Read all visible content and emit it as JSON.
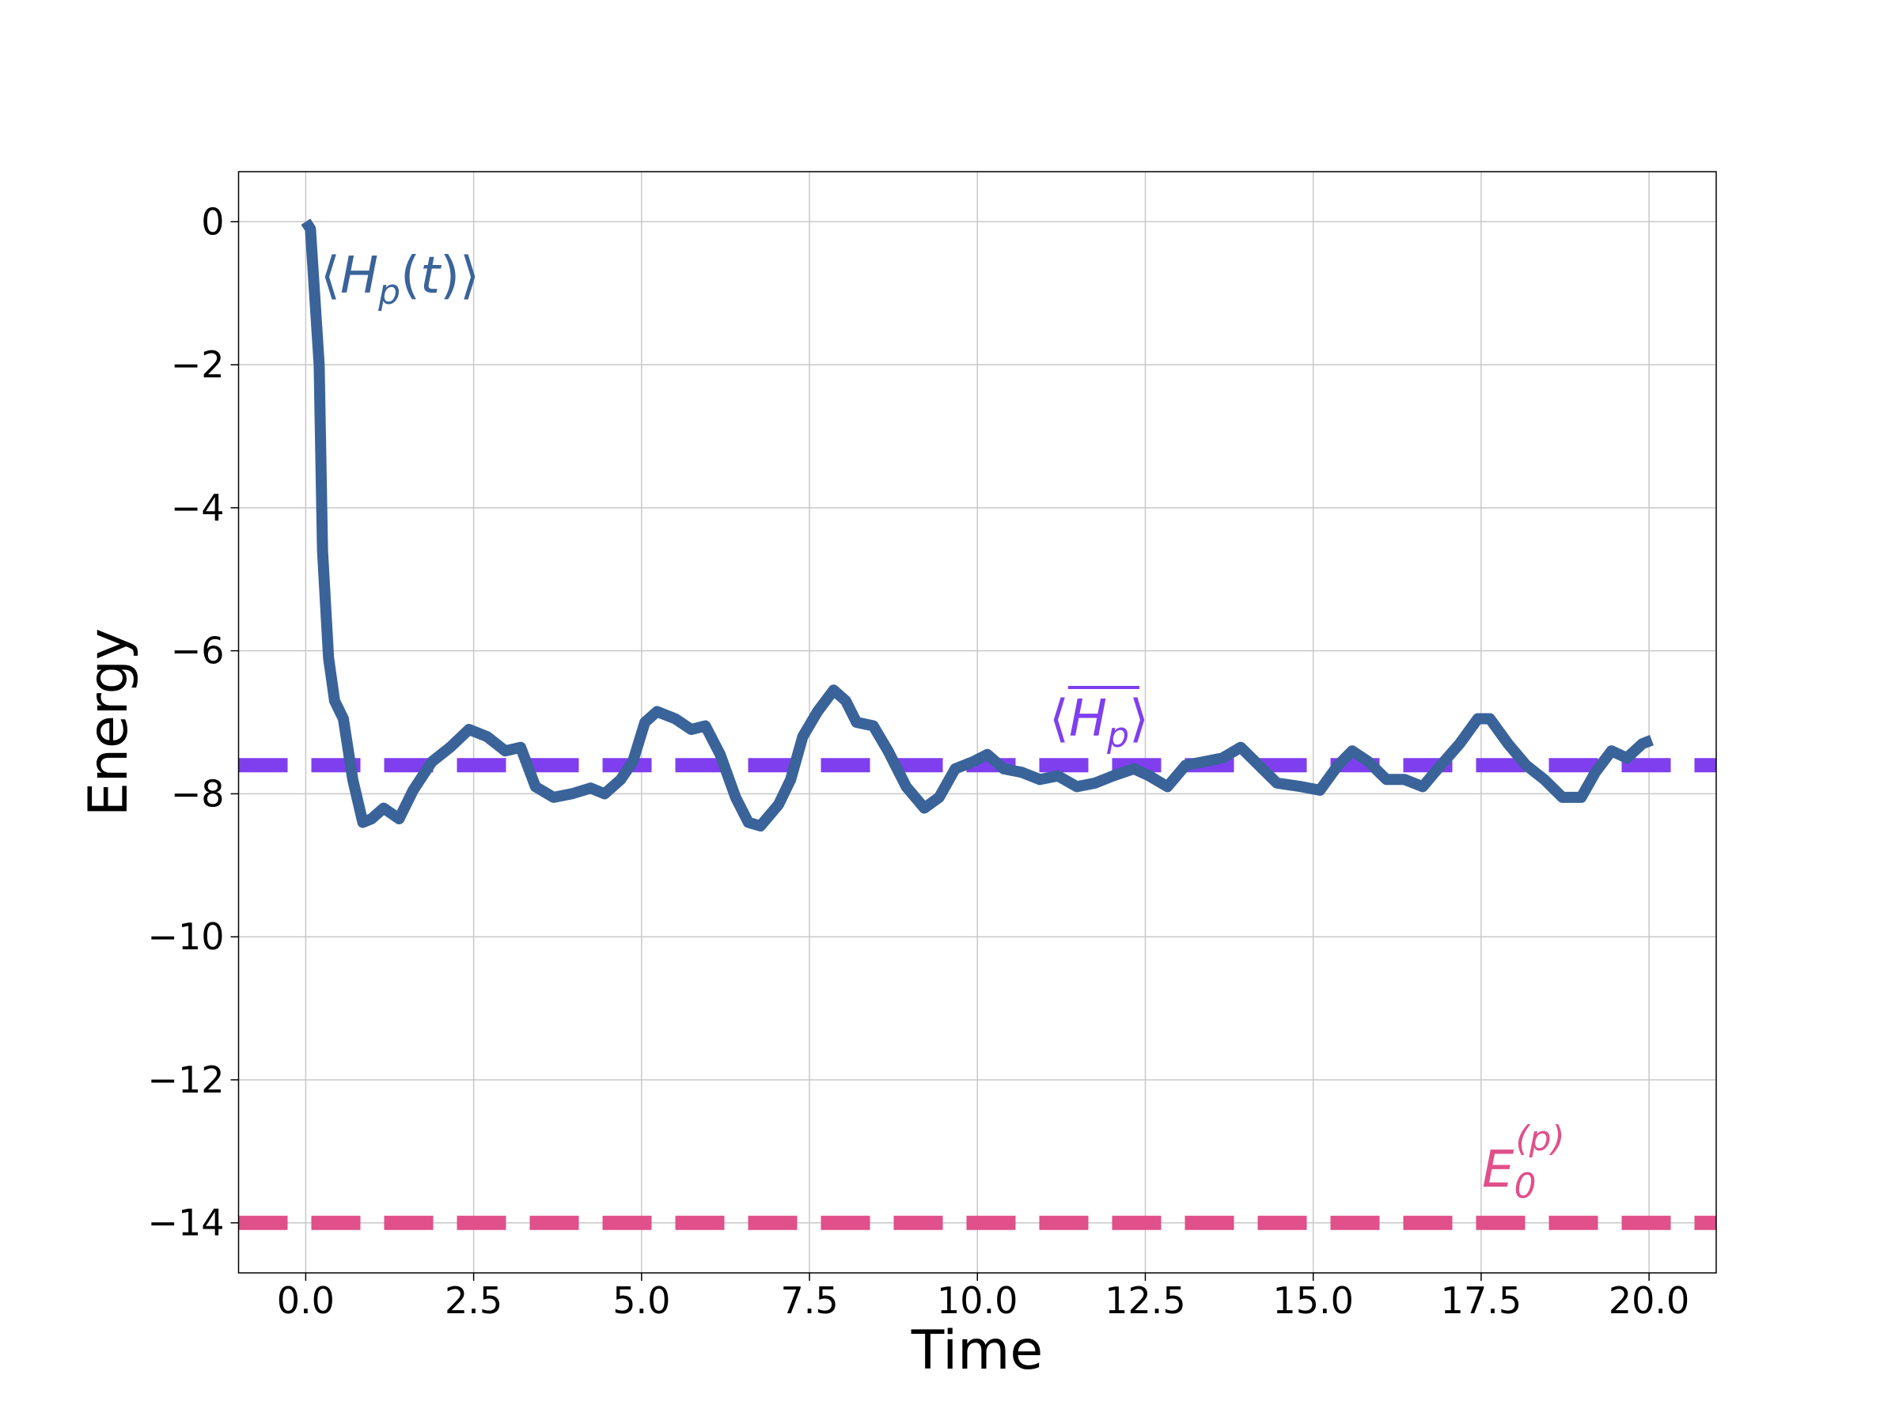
{
  "chart_data": {
    "type": "line",
    "x_label": "Time",
    "y_label": "Energy",
    "xlim": [
      -1.0,
      21.0
    ],
    "ylim": [
      -14.7,
      0.7
    ],
    "xticks": [
      {
        "value": 0,
        "label": "0.0"
      },
      2.5,
      {
        "value": 5,
        "label": "5.0"
      },
      7.5,
      {
        "value": 10,
        "label": "10.0"
      },
      12.5,
      {
        "value": 15,
        "label": "15.0"
      },
      17.5,
      {
        "value": 20,
        "label": "20.0"
      }
    ],
    "yticks": [
      {
        "value": 0,
        "label": "0"
      },
      {
        "value": -2,
        "label": "−2"
      },
      {
        "value": -4,
        "label": "−4"
      },
      {
        "value": -6,
        "label": "−6"
      },
      {
        "value": -8,
        "label": "−8"
      },
      {
        "value": -10,
        "label": "−10"
      },
      {
        "value": -12,
        "label": "−12"
      },
      {
        "value": -14,
        "label": "−14"
      }
    ],
    "grid": true,
    "x": [
      0,
      0.07,
      0.2,
      0.25,
      0.34,
      0.43,
      0.56,
      0.7,
      0.85,
      0.98,
      1.16,
      1.39,
      1.6,
      1.88,
      2.15,
      2.43,
      2.7,
      2.97,
      3.2,
      3.42,
      3.69,
      3.96,
      4.24,
      4.45,
      4.69,
      4.87,
      5.05,
      5.23,
      5.5,
      5.74,
      5.95,
      6.17,
      6.4,
      6.59,
      6.77,
      7.04,
      7.22,
      7.4,
      7.62,
      7.86,
      8.04,
      8.2,
      8.45,
      8.67,
      8.94,
      9.21,
      9.43,
      9.67,
      9.94,
      10.15,
      10.39,
      10.66,
      10.93,
      11.2,
      11.48,
      11.75,
      12.02,
      12.33,
      12.56,
      12.83,
      13.1,
      13.38,
      13.65,
      13.92,
      14.19,
      14.46,
      14.82,
      15.1,
      15.37,
      15.58,
      15.82,
      16.09,
      16.36,
      16.63,
      16.9,
      17.18,
      17.45,
      17.63,
      17.9,
      18.17,
      18.44,
      18.71,
      18.99,
      19.2,
      19.44,
      19.67,
      19.9,
      20.04
    ],
    "series": [
      {
        "color": "#3a6399",
        "values": [
          0,
          -0.1,
          -2.0,
          -4.6,
          -6.1,
          -6.7,
          -6.95,
          -7.8,
          -8.4,
          -8.35,
          -8.2,
          -8.35,
          -7.95,
          -7.55,
          -7.35,
          -7.1,
          -7.2,
          -7.4,
          -7.35,
          -7.9,
          -8.05,
          -8.0,
          -7.92,
          -8.0,
          -7.8,
          -7.55,
          -7.0,
          -6.85,
          -6.95,
          -7.1,
          -7.05,
          -7.45,
          -8.05,
          -8.4,
          -8.45,
          -8.15,
          -7.8,
          -7.2,
          -6.85,
          -6.55,
          -6.7,
          -7.0,
          -7.05,
          -7.4,
          -7.9,
          -8.2,
          -8.05,
          -7.65,
          -7.55,
          -7.45,
          -7.65,
          -7.7,
          -7.8,
          -7.75,
          -7.9,
          -7.85,
          -7.75,
          -7.65,
          -7.75,
          -7.9,
          -7.6,
          -7.55,
          -7.5,
          -7.35,
          -7.6,
          -7.85,
          -7.9,
          -7.95,
          -7.6,
          -7.4,
          -7.55,
          -7.8,
          -7.8,
          -7.9,
          -7.6,
          -7.3,
          -6.95,
          -6.95,
          -7.3,
          -7.6,
          -7.8,
          -8.05,
          -8.05,
          -7.7,
          -7.4,
          -7.5,
          -7.3,
          -7.25
        ]
      }
    ],
    "hlines": [
      {
        "y": -7.6,
        "color": "#7f3fef"
      },
      {
        "y": -14.0,
        "color": "#e0508a"
      }
    ],
    "annotations": [
      {
        "parts": [
          "⟨",
          "H",
          "p",
          "(",
          "t",
          ")⟩"
        ],
        "color": "#3a6399"
      },
      {
        "parts": [
          "⟨",
          "H",
          "p",
          "⟩"
        ],
        "color": "#7f3fef"
      },
      {
        "parts": [
          "E",
          "0",
          "(p)"
        ],
        "color": "#e0508a"
      }
    ]
  }
}
